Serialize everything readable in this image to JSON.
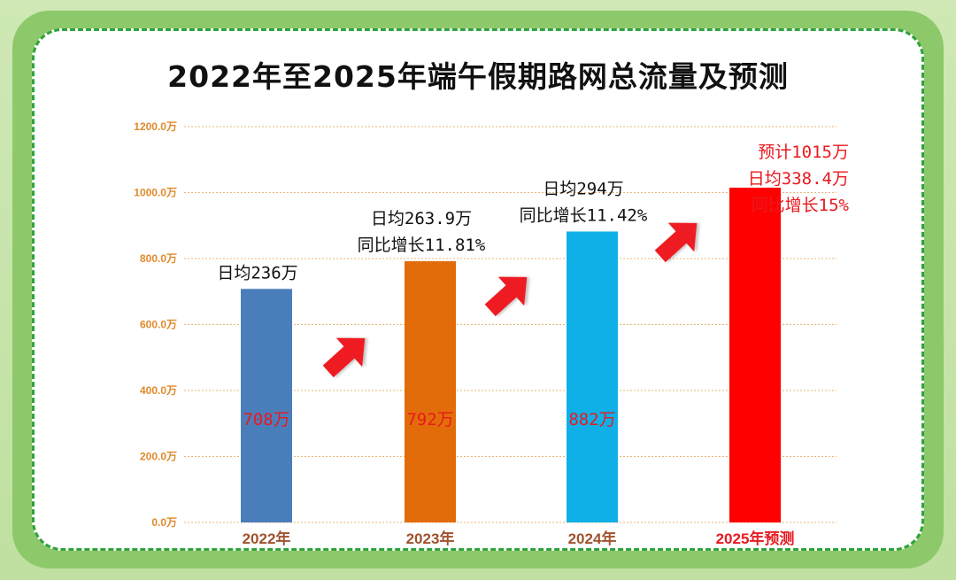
{
  "colors": {
    "tick": "#e08a2c",
    "grid": "#e9b47a",
    "x2022": "#a0522d",
    "x2023": "#a0522d",
    "x2024": "#a0522d",
    "xforecast": "#e8191f",
    "value_label": "#e8191f",
    "annotation": "#111111",
    "annotation_forecast": "#e8191f",
    "arrow": "#ee1c24"
  },
  "chart_data": {
    "type": "bar",
    "title": "2022年至2025年端午假期路网总流量及预测",
    "xlabel": "",
    "ylabel": "",
    "ylim": [
      0,
      1200
    ],
    "yticks": [
      0,
      200,
      400,
      600,
      800,
      1000,
      1200
    ],
    "ytick_labels": [
      "0.0万",
      "200.0万",
      "400.0万",
      "600.0万",
      "800.0万",
      "1000.0万",
      "1200.0万"
    ],
    "grid": true,
    "categories": [
      "2022年",
      "2023年",
      "2024年",
      "2025年预测"
    ],
    "values": [
      708,
      792,
      882,
      1015
    ],
    "bar_colors": [
      "#4a7ebb",
      "#e36c0a",
      "#0fb0e8",
      "#fe0000"
    ],
    "value_labels": [
      "708万",
      "792万",
      "882万",
      ""
    ],
    "annotations": [
      [
        "日均236万"
      ],
      [
        "日均263.9万",
        "同比增长11.81%"
      ],
      [
        "日均294万",
        "同比增长11.42%"
      ],
      [
        "预计1015万",
        "日均338.4万",
        "同比增长15%"
      ]
    ]
  }
}
